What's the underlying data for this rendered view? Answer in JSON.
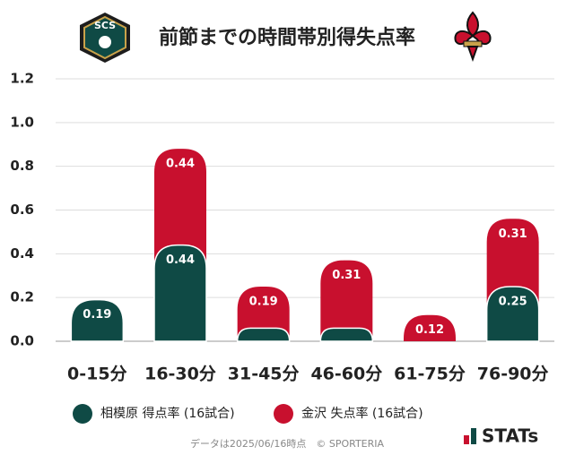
{
  "chart_data": {
    "type": "stacked_bar",
    "title": "前節までの時間帯別得失点率",
    "categories": [
      "0-15分",
      "16-30分",
      "31-45分",
      "46-60分",
      "61-75分",
      "76-90分"
    ],
    "series": [
      {
        "name": "相模原 得点率 (16試合)",
        "color": "#0f4a45",
        "values": [
          0.19,
          0.44,
          0.06,
          0.06,
          0,
          0.25
        ],
        "value_labels": [
          "0.19",
          "0.44",
          null,
          null,
          null,
          "0.25"
        ]
      },
      {
        "name": "金沢 失点率 (16試合)",
        "color": "#c8102e",
        "values": [
          0,
          0.44,
          0.19,
          0.31,
          0.12,
          0.31
        ],
        "value_labels": [
          null,
          "0.44",
          "0.19",
          "0.31",
          "0.12",
          "0.31"
        ]
      }
    ],
    "ylim": [
      0,
      1.2
    ],
    "yticks": [
      {
        "value": 0,
        "label": "0.0"
      },
      0.2,
      0.4,
      0.6,
      0.8,
      {
        "value": 1,
        "label": "1.0"
      },
      1.2
    ],
    "grid": true
  },
  "header": {
    "logo_text": "SCS"
  },
  "footer": {
    "note": "データは2025/06/16時点　© SPORTERIA",
    "brand": "STATs"
  }
}
